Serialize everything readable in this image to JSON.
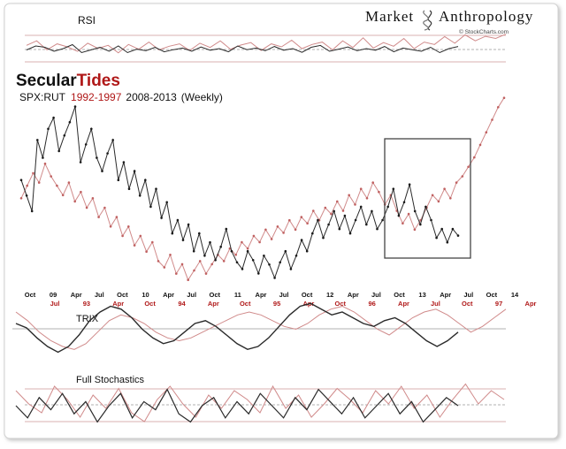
{
  "header": {
    "brand_left": "Market",
    "brand_right": "Anthropology",
    "brand_logo_icon": "dna-helix-icon",
    "credit": "© StockCharts.com"
  },
  "title": {
    "part1": "Secular",
    "part2": "Tides",
    "subtitle_ratio": "SPX:RUT",
    "subtitle_years_red": "1992-1997",
    "subtitle_years_black": "2008-2013",
    "subtitle_freq": "(Weekly)"
  },
  "panels": {
    "rsi_label": "RSI",
    "trix_label": "TRIX",
    "stoch_label": "Full Stochastics"
  },
  "colors": {
    "black_series": "#2a2a2a",
    "red_series": "#d08a8a",
    "red_text": "#b01818",
    "box": "#444444",
    "grid": "#aaaaaa",
    "frame": "#cccccc"
  },
  "chart_data": {
    "type": "line",
    "title": "SecularTides SPX:RUT 1992-1997 2008-2013 (Weekly)",
    "series": [
      {
        "name": "1992-1997",
        "color": "red"
      },
      {
        "name": "2008-2013",
        "color": "black"
      }
    ],
    "x_labels_black": [
      "Oct",
      "09",
      "Apr",
      "Jul",
      "Oct",
      "10",
      "Apr",
      "Jul",
      "Oct",
      "11",
      "Apr",
      "Jul",
      "Oct",
      "12",
      "Apr",
      "Jul",
      "Oct",
      "13",
      "Apr",
      "Jul",
      "Oct",
      "14"
    ],
    "x_labels_red": [
      "Jul",
      "93",
      "Apr",
      "Oct",
      "94",
      "Apr",
      "Oct",
      "95",
      "Apr",
      "Oct",
      "96",
      "Apr",
      "Jul",
      "Oct",
      "97",
      "Apr"
    ],
    "price_black": [
      0.62,
      0.55,
      0.48,
      0.8,
      0.72,
      0.85,
      0.9,
      0.75,
      0.82,
      0.88,
      0.95,
      0.7,
      0.78,
      0.85,
      0.72,
      0.66,
      0.74,
      0.8,
      0.62,
      0.7,
      0.58,
      0.66,
      0.55,
      0.62,
      0.5,
      0.58,
      0.45,
      0.52,
      0.38,
      0.44,
      0.35,
      0.42,
      0.3,
      0.38,
      0.28,
      0.34,
      0.26,
      0.32,
      0.4,
      0.3,
      0.25,
      0.22,
      0.3,
      0.26,
      0.2,
      0.28,
      0.24,
      0.18,
      0.25,
      0.3,
      0.22,
      0.28,
      0.35,
      0.3,
      0.38,
      0.44,
      0.36,
      0.42,
      0.48,
      0.4,
      0.46,
      0.38,
      0.44,
      0.5,
      0.42,
      0.48,
      0.4,
      0.44,
      0.5,
      0.58,
      0.46,
      0.52,
      0.6,
      0.48,
      0.42,
      0.5,
      0.44,
      0.36,
      0.4,
      0.34,
      0.4,
      0.37
    ],
    "price_red": [
      0.7,
      0.78,
      0.86,
      0.8,
      0.92,
      0.84,
      0.78,
      0.72,
      0.8,
      0.68,
      0.74,
      0.64,
      0.7,
      0.58,
      0.64,
      0.52,
      0.58,
      0.46,
      0.52,
      0.4,
      0.46,
      0.36,
      0.42,
      0.3,
      0.26,
      0.34,
      0.22,
      0.28,
      0.18,
      0.24,
      0.3,
      0.22,
      0.28,
      0.34,
      0.3,
      0.38,
      0.34,
      0.42,
      0.38,
      0.46,
      0.42,
      0.5,
      0.44,
      0.52,
      0.48,
      0.56,
      0.5,
      0.58,
      0.54,
      0.62,
      0.56,
      0.64,
      0.6,
      0.68,
      0.62,
      0.72,
      0.66,
      0.76,
      0.7,
      0.8,
      0.74,
      0.66,
      0.72,
      0.62,
      0.54,
      0.6,
      0.5,
      0.56,
      0.64,
      0.72,
      0.68,
      0.76,
      0.7,
      0.8,
      0.84,
      0.9,
      0.96,
      1.04,
      1.12,
      1.2,
      1.28,
      1.34
    ],
    "rsi_black": [
      0.45,
      0.6,
      0.55,
      0.4,
      0.5,
      0.65,
      0.35,
      0.45,
      0.55,
      0.4,
      0.6,
      0.35,
      0.48,
      0.42,
      0.55,
      0.38,
      0.46,
      0.52,
      0.4,
      0.56,
      0.44,
      0.5,
      0.38,
      0.6,
      0.46,
      0.52,
      0.42,
      0.58,
      0.44,
      0.5,
      0.36,
      0.55,
      0.62,
      0.4,
      0.48,
      0.56,
      0.42,
      0.5,
      0.44,
      0.58,
      0.38,
      0.52,
      0.46,
      0.4,
      0.55,
      0.35,
      0.5,
      0.58
    ],
    "rsi_red": [
      0.55,
      0.7,
      0.4,
      0.6,
      0.5,
      0.35,
      0.62,
      0.45,
      0.55,
      0.3,
      0.58,
      0.42,
      0.66,
      0.4,
      0.52,
      0.6,
      0.38,
      0.62,
      0.48,
      0.7,
      0.42,
      0.56,
      0.64,
      0.38,
      0.6,
      0.5,
      0.72,
      0.44,
      0.58,
      0.66,
      0.4,
      0.7,
      0.48,
      0.8,
      0.46,
      0.64,
      0.52,
      0.78,
      0.44,
      0.66,
      0.58,
      0.84,
      0.62,
      0.9,
      0.7,
      0.85,
      0.78,
      0.92
    ],
    "trix_black": [
      0.2,
      0.05,
      -0.3,
      -0.6,
      -0.8,
      -0.6,
      -0.2,
      0.3,
      0.6,
      0.8,
      0.7,
      0.4,
      0.0,
      -0.3,
      -0.5,
      -0.4,
      -0.1,
      0.2,
      0.3,
      0.1,
      -0.2,
      -0.5,
      -0.7,
      -0.6,
      -0.3,
      0.1,
      0.5,
      0.8,
      0.9,
      0.7,
      0.5,
      0.6,
      0.4,
      0.2,
      0.1,
      0.3,
      0.4,
      0.2,
      -0.1,
      -0.4,
      -0.6,
      -0.4,
      -0.1
    ],
    "trix_red": [
      0.6,
      0.3,
      -0.1,
      -0.4,
      -0.6,
      -0.7,
      -0.5,
      -0.1,
      0.3,
      0.5,
      0.4,
      0.2,
      -0.1,
      -0.3,
      -0.4,
      -0.3,
      -0.1,
      0.1,
      0.3,
      0.5,
      0.6,
      0.5,
      0.3,
      0.1,
      0.0,
      0.2,
      0.5,
      0.7,
      0.8,
      0.6,
      0.3,
      0.0,
      -0.2,
      0.1,
      0.4,
      0.6,
      0.7,
      0.5,
      0.2,
      -0.1,
      0.1,
      0.4,
      0.7
    ],
    "stoch_black": [
      0.5,
      0.2,
      0.7,
      0.4,
      0.8,
      0.3,
      0.6,
      0.1,
      0.5,
      0.8,
      0.2,
      0.6,
      0.4,
      0.9,
      0.3,
      0.1,
      0.5,
      0.7,
      0.2,
      0.6,
      0.3,
      0.8,
      0.5,
      0.2,
      0.7,
      0.4,
      0.9,
      0.6,
      0.3,
      0.7,
      0.2,
      0.5,
      0.8,
      0.3,
      0.6,
      0.1,
      0.4,
      0.7,
      0.5
    ],
    "stoch_red": [
      0.8,
      0.5,
      0.3,
      0.9,
      0.6,
      0.2,
      0.7,
      0.4,
      0.85,
      0.3,
      0.1,
      0.6,
      0.9,
      0.5,
      0.2,
      0.7,
      0.4,
      0.8,
      0.6,
      0.3,
      0.9,
      0.4,
      0.7,
      0.2,
      0.5,
      0.85,
      0.6,
      0.3,
      0.8,
      0.5,
      0.9,
      0.4,
      0.7,
      0.2,
      0.6,
      0.95,
      0.5,
      0.8,
      0.6
    ]
  }
}
